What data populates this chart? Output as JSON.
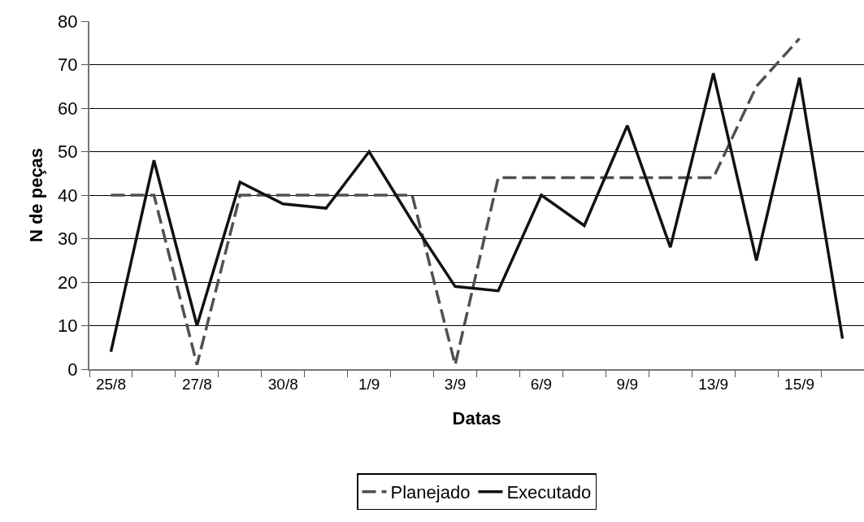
{
  "chart_data": {
    "type": "line",
    "xlabel": "Datas",
    "ylabel": "N de peças",
    "categories": [
      "25/8",
      null,
      "27/8",
      null,
      "30/8",
      null,
      "1/9",
      null,
      "3/9",
      null,
      "6/9",
      null,
      "9/9",
      null,
      "13/9",
      null,
      "15/9",
      null
    ],
    "series": [
      {
        "name": "Planejado",
        "color": "#505050",
        "line_style": "dashed",
        "values": [
          40,
          40,
          1,
          40,
          40,
          40,
          40,
          40,
          1,
          44,
          44,
          44,
          44,
          44,
          44,
          65,
          76,
          null
        ]
      },
      {
        "name": "Executado",
        "color": "#111111",
        "line_style": "solid",
        "values": [
          4,
          48,
          10,
          43,
          38,
          37,
          50,
          34,
          19,
          18,
          40,
          33,
          56,
          28,
          68,
          25,
          67,
          7
        ]
      }
    ],
    "ylim": [
      0,
      80
    ],
    "yticks": [
      0,
      10,
      20,
      30,
      40,
      50,
      60,
      70,
      80
    ],
    "grid": "y",
    "legend": "bottom",
    "marker": "none"
  }
}
